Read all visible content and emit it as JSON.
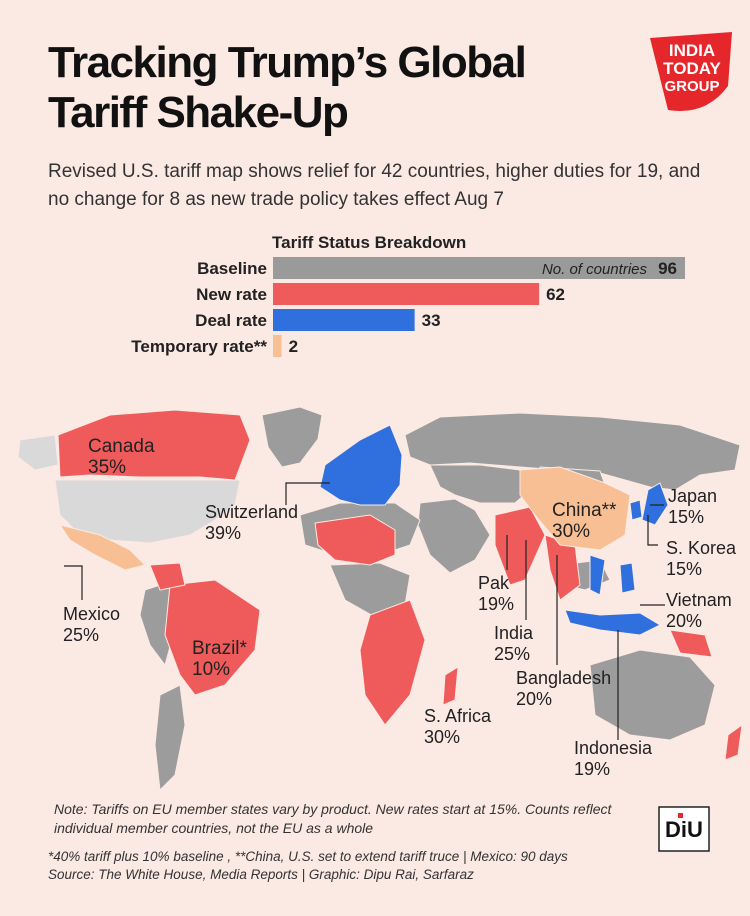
{
  "header": {
    "title_line1": "Tracking Trump’s Global",
    "title_line2": "Tariff Shake-Up",
    "subtitle": "Revised U.S. tariff map shows relief for 42 countries, higher duties for 19, and no change for 8 as new trade policy takes effect Aug 7"
  },
  "logo": {
    "line1": "INDIA",
    "line2": "TODAY",
    "line3": "GROUP",
    "color": "#e5262a"
  },
  "chart_data": {
    "type": "bar",
    "orientation": "horizontal",
    "title": "Tariff Status Breakdown",
    "annotation": "No. of countries",
    "categories": [
      "Baseline",
      "New rate",
      "Deal rate",
      "Temporary rate**"
    ],
    "values": [
      96,
      62,
      33,
      2
    ],
    "colors": [
      "#9a9a9a",
      "#ef5b5b",
      "#2f6fde",
      "#f7bf93"
    ],
    "xlim": [
      0,
      96
    ]
  },
  "map": {
    "colors": {
      "land": "#9c9c9c",
      "new_rate": "#ef5b5b",
      "deal_rate": "#2f6fde",
      "temporary": "#f7bf93",
      "light": "#d9d9d9"
    },
    "labels": {
      "canada": {
        "name": "Canada",
        "rate": "35%"
      },
      "switzerland": {
        "name": "Switzerland",
        "rate": "39%"
      },
      "mexico": {
        "name": "Mexico",
        "rate": "25%"
      },
      "brazil": {
        "name": "Brazil*",
        "rate": "10%"
      },
      "china": {
        "name": "China**",
        "rate": "30%"
      },
      "japan": {
        "name": "Japan",
        "rate": "15%"
      },
      "korea": {
        "name": "S. Korea",
        "rate": "15%"
      },
      "vietnam": {
        "name": "Vietnam",
        "rate": "20%"
      },
      "pak": {
        "name": "Pak",
        "rate": "19%"
      },
      "india": {
        "name": "India",
        "rate": "25%"
      },
      "bangladesh": {
        "name": "Bangladesh",
        "rate": "20%"
      },
      "safrica": {
        "name": "S. Africa",
        "rate": "30%"
      },
      "indonesia": {
        "name": "Indonesia",
        "rate": "19%"
      }
    }
  },
  "footer": {
    "note": "Note: Tariffs on EU member states vary by product. New rates start at 15%. Counts reflect individual member countries, not the EU as a whole",
    "footnote_line1": "*40% tariff plus 10% baseline , **China, U.S. set to extend tariff truce | Mexico: 90 days",
    "footnote_line2": "Source: The White House, Media Reports | Graphic: Dipu Rai, Sarfaraz",
    "diu_logo": "DiU"
  }
}
